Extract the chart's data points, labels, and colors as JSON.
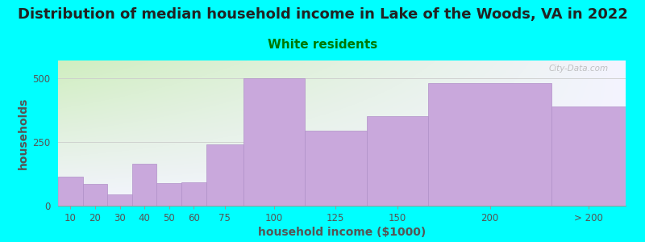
{
  "title": "Distribution of median household income in Lake of the Woods, VA in 2022",
  "subtitle": "White residents",
  "xlabel": "household income ($1000)",
  "ylabel": "households",
  "background_color": "#00FFFF",
  "bar_color": "#C9A8DC",
  "bar_edge_color": "#b090c8",
  "categories": [
    "10",
    "20",
    "30",
    "40",
    "50",
    "60",
    "75",
    "100",
    "125",
    "150",
    "200",
    "> 200"
  ],
  "edges": [
    0,
    10,
    20,
    30,
    40,
    50,
    60,
    75,
    100,
    125,
    150,
    200,
    230
  ],
  "values": [
    115,
    85,
    45,
    165,
    88,
    92,
    240,
    500,
    295,
    350,
    480,
    390
  ],
  "ylim": [
    0,
    570
  ],
  "yticks": [
    0,
    250,
    500
  ],
  "title_fontsize": 13,
  "subtitle_fontsize": 11,
  "axis_label_fontsize": 10,
  "tick_fontsize": 8.5,
  "watermark_text": "City-Data.com",
  "title_color": "#222222",
  "subtitle_color": "#007700",
  "axis_label_color": "#555555",
  "tick_color": "#555555"
}
